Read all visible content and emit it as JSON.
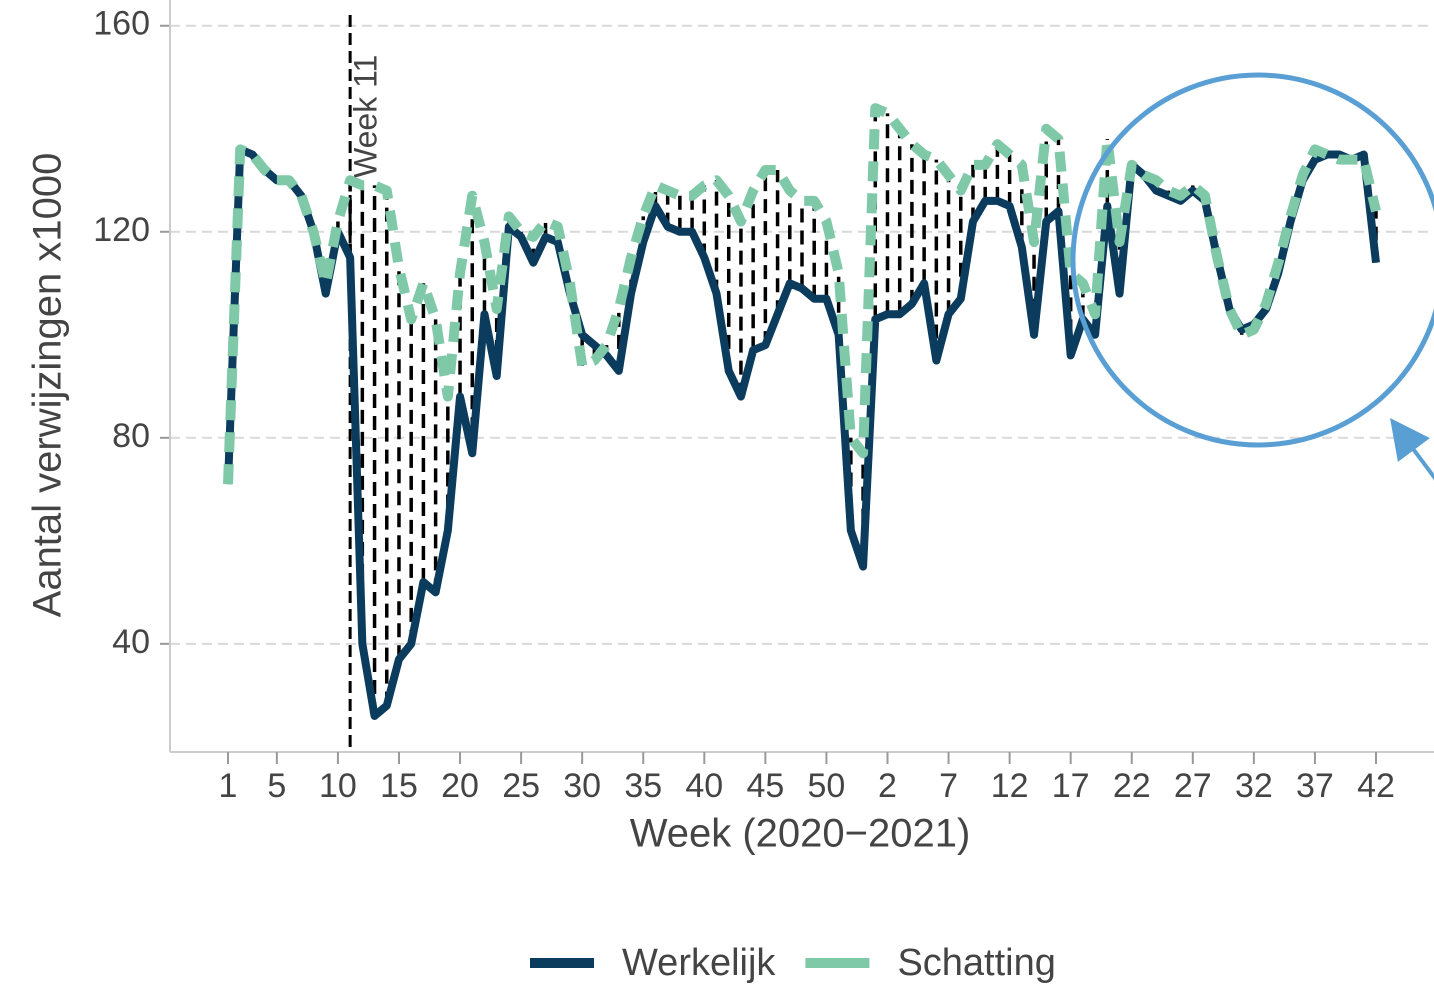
{
  "chart_data": {
    "type": "line",
    "xlabel": "Week (2020−2021)",
    "ylabel": "Aantal verwijzingen x1000",
    "categories": [
      "1",
      null,
      null,
      null,
      "5",
      null,
      null,
      null,
      null,
      "10",
      null,
      null,
      null,
      null,
      "15",
      null,
      null,
      null,
      null,
      "20",
      null,
      null,
      null,
      null,
      "25",
      null,
      null,
      null,
      null,
      "30",
      null,
      null,
      null,
      null,
      "35",
      null,
      null,
      null,
      null,
      "40",
      null,
      null,
      null,
      null,
      "45",
      null,
      null,
      null,
      null,
      "50",
      null,
      null,
      null,
      null,
      "2",
      null,
      null,
      null,
      null,
      "7",
      null,
      null,
      null,
      null,
      "12",
      null,
      null,
      null,
      null,
      "17",
      null,
      null,
      null,
      null,
      "22",
      null,
      null,
      null,
      null,
      "27",
      null,
      null,
      null,
      null,
      "32",
      null,
      null,
      null,
      null,
      "37",
      null,
      null,
      null,
      null,
      "42"
    ],
    "series": [
      {
        "name": "Werkelijk",
        "color": "#0b3c5d",
        "dashed": false,
        "values": [
          71,
          136,
          135,
          132,
          130,
          130,
          127,
          120,
          108,
          120,
          115,
          40,
          26,
          28,
          37,
          40,
          52,
          50,
          62,
          88,
          77,
          104,
          92,
          121,
          119,
          114,
          119,
          118,
          108,
          100,
          98,
          96,
          93,
          108,
          118,
          125,
          121,
          120,
          120,
          115,
          108,
          93,
          88,
          97,
          98,
          104,
          110,
          109,
          107,
          107,
          100,
          62,
          55,
          103,
          104,
          104,
          106,
          110,
          95,
          104,
          107,
          122,
          126,
          126,
          125,
          117,
          100,
          122,
          124,
          96,
          103,
          100,
          125,
          108,
          133,
          131,
          128,
          127,
          126,
          128,
          126,
          115,
          105,
          101,
          102,
          105,
          112,
          122,
          130,
          134,
          135,
          135,
          134,
          135,
          114
        ]
      },
      {
        "name": "Schatting",
        "color": "#7fc9a9",
        "dashed": true,
        "values": [
          71,
          136,
          135,
          132,
          130,
          130,
          127,
          120,
          110,
          122,
          130,
          129,
          129,
          128,
          113,
          103,
          110,
          103,
          88,
          112,
          127,
          118,
          105,
          123,
          120,
          119,
          122,
          121,
          110,
          94,
          95,
          98,
          105,
          115,
          123,
          129,
          128,
          127,
          127,
          129,
          130,
          127,
          122,
          128,
          132,
          132,
          128,
          126,
          126,
          122,
          112,
          80,
          77,
          144,
          143,
          140,
          137,
          135,
          134,
          131,
          128,
          133,
          133,
          137,
          135,
          133,
          118,
          140,
          138,
          112,
          110,
          104,
          138,
          118,
          133,
          131,
          130,
          128,
          127,
          129,
          127,
          115,
          105,
          100,
          101,
          106,
          114,
          123,
          131,
          136,
          135,
          134,
          134,
          134,
          124
        ]
      }
    ],
    "vline": {
      "label": "Week 11",
      "at": 10
    },
    "ylim": [
      19,
      165
    ],
    "yticks": [
      40,
      80,
      120,
      160
    ],
    "grid": true
  }
}
